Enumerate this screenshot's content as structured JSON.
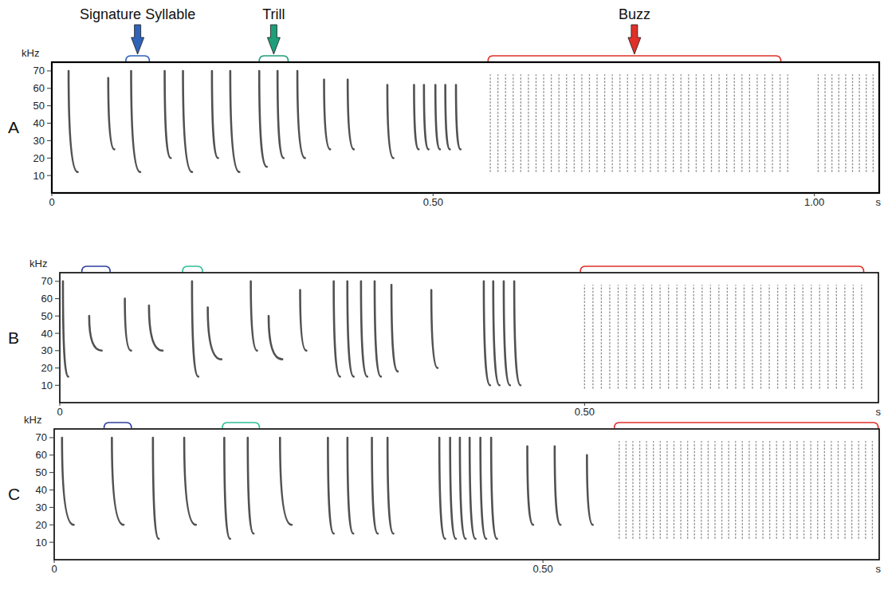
{
  "chart_data": [
    {
      "type": "spectrogram",
      "title": "A",
      "ylabel": "kHz",
      "xlabel": "s",
      "color": "#333333",
      "xlim": [
        0,
        1.085
      ],
      "xticks": [
        0,
        {
          "value": 0.5,
          "label": "0.50"
        },
        {
          "value": 1.0,
          "label": "1.00"
        }
      ],
      "ylim": [
        0,
        75
      ],
      "yticks": [
        10,
        20,
        30,
        40,
        50,
        60,
        70
      ],
      "annotations": [
        {
          "label": "Signature Syllable",
          "x": [
            0.097,
            0.128
          ],
          "color": "#2f63b8"
        },
        {
          "label": "Trill",
          "x": [
            0.272,
            0.31
          ],
          "color": "#1f9e7a"
        },
        {
          "label": "Buzz",
          "x": [
            0.572,
            0.956
          ],
          "color": "#e0302a"
        }
      ],
      "syllables": [
        {
          "t": [
            0.022,
            0.034
          ],
          "f": [
            70,
            12
          ]
        },
        {
          "t": [
            0.074,
            0.082
          ],
          "f": [
            66,
            25
          ]
        },
        {
          "t": [
            0.104,
            0.116
          ],
          "f": [
            70,
            12
          ]
        },
        {
          "t": [
            0.148,
            0.156
          ],
          "f": [
            70,
            20
          ]
        },
        {
          "t": [
            0.172,
            0.184
          ],
          "f": [
            70,
            12
          ]
        },
        {
          "t": [
            0.21,
            0.218
          ],
          "f": [
            70,
            20
          ]
        },
        {
          "t": [
            0.234,
            0.246
          ],
          "f": [
            70,
            12
          ]
        },
        {
          "t": [
            0.272,
            0.282
          ],
          "f": [
            70,
            15
          ]
        },
        {
          "t": [
            0.296,
            0.304
          ],
          "f": [
            70,
            20
          ]
        },
        {
          "t": [
            0.322,
            0.332
          ],
          "f": [
            70,
            20
          ]
        },
        {
          "t": [
            0.357,
            0.365
          ],
          "f": [
            65,
            25
          ]
        },
        {
          "t": [
            0.388,
            0.396
          ],
          "f": [
            65,
            25
          ]
        },
        {
          "t": [
            0.44,
            0.448
          ],
          "f": [
            62,
            20
          ]
        },
        {
          "t": [
            0.475,
            0.481
          ],
          "f": [
            62,
            25
          ]
        },
        {
          "t": [
            0.488,
            0.494
          ],
          "f": [
            62,
            25
          ]
        },
        {
          "t": [
            0.503,
            0.509
          ],
          "f": [
            62,
            25
          ]
        },
        {
          "t": [
            0.516,
            0.522
          ],
          "f": [
            62,
            25
          ]
        },
        {
          "t": [
            0.53,
            0.536
          ],
          "f": [
            62,
            25
          ]
        }
      ],
      "buzz": {
        "f": [
          12,
          68
        ],
        "t": [
          0.575,
          0.585,
          0.595,
          0.605,
          0.615,
          0.625,
          0.635,
          0.645,
          0.655,
          0.665,
          0.675,
          0.685,
          0.695,
          0.705,
          0.715,
          0.725,
          0.735,
          0.745,
          0.755,
          0.765,
          0.775,
          0.785,
          0.795,
          0.805,
          0.815,
          0.825,
          0.835,
          0.845,
          0.855,
          0.865,
          0.875,
          0.885,
          0.895,
          0.905,
          0.915,
          0.925,
          0.935,
          0.945,
          0.955,
          0.965,
          1.005,
          1.014,
          1.023,
          1.032,
          1.041,
          1.05,
          1.059,
          1.068,
          1.077
        ]
      }
    },
    {
      "type": "spectrogram",
      "title": "B",
      "ylabel": "kHz",
      "xlabel": "s",
      "color": "#333333",
      "xlim": [
        0,
        0.78
      ],
      "xticks": [
        0,
        {
          "value": 0.5,
          "label": "0.50"
        }
      ],
      "ylim": [
        0,
        75
      ],
      "yticks": [
        10,
        20,
        30,
        40,
        50,
        60,
        70
      ],
      "annotations": [
        {
          "x": [
            0.021,
            0.048
          ],
          "color": "#2f3f9e"
        },
        {
          "x": [
            0.117,
            0.136
          ],
          "color": "#2fbf95"
        },
        {
          "x": [
            0.496,
            0.766
          ],
          "color": "#e0302a"
        }
      ],
      "syllables": [
        {
          "t": [
            0.003,
            0.008
          ],
          "f": [
            70,
            15
          ]
        },
        {
          "t": [
            0.028,
            0.04
          ],
          "f": [
            50,
            30
          ]
        },
        {
          "t": [
            0.062,
            0.068
          ],
          "f": [
            60,
            30
          ]
        },
        {
          "t": [
            0.085,
            0.098
          ],
          "f": [
            56,
            30
          ]
        },
        {
          "t": [
            0.126,
            0.132
          ],
          "f": [
            70,
            15
          ]
        },
        {
          "t": [
            0.141,
            0.154
          ],
          "f": [
            55,
            25
          ]
        },
        {
          "t": [
            0.182,
            0.188
          ],
          "f": [
            70,
            30
          ]
        },
        {
          "t": [
            0.199,
            0.212
          ],
          "f": [
            50,
            25
          ]
        },
        {
          "t": [
            0.229,
            0.235
          ],
          "f": [
            65,
            30
          ]
        },
        {
          "t": [
            0.261,
            0.267
          ],
          "f": [
            70,
            15
          ]
        },
        {
          "t": [
            0.274,
            0.28
          ],
          "f": [
            70,
            15
          ]
        },
        {
          "t": [
            0.287,
            0.293
          ],
          "f": [
            70,
            15
          ]
        },
        {
          "t": [
            0.3,
            0.306
          ],
          "f": [
            70,
            15
          ]
        },
        {
          "t": [
            0.316,
            0.322
          ],
          "f": [
            68,
            18
          ]
        },
        {
          "t": [
            0.354,
            0.36
          ],
          "f": [
            65,
            20
          ]
        },
        {
          "t": [
            0.404,
            0.41
          ],
          "f": [
            70,
            10
          ]
        },
        {
          "t": [
            0.413,
            0.419
          ],
          "f": [
            70,
            10
          ]
        },
        {
          "t": [
            0.423,
            0.429
          ],
          "f": [
            70,
            10
          ]
        },
        {
          "t": [
            0.433,
            0.439
          ],
          "f": [
            70,
            10
          ]
        }
      ],
      "buzz": {
        "f": [
          8,
          68
        ],
        "t": [
          0.5,
          0.508,
          0.516,
          0.524,
          0.532,
          0.54,
          0.548,
          0.556,
          0.564,
          0.572,
          0.58,
          0.588,
          0.596,
          0.604,
          0.612,
          0.62,
          0.628,
          0.636,
          0.644,
          0.652,
          0.66,
          0.668,
          0.676,
          0.684,
          0.692,
          0.7,
          0.708,
          0.716,
          0.724,
          0.732,
          0.74,
          0.748,
          0.756,
          0.764
        ]
      }
    },
    {
      "type": "spectrogram",
      "title": "C",
      "ylabel": "kHz",
      "xlabel": "s",
      "color": "#333333",
      "xlim": [
        0,
        0.844
      ],
      "xticks": [
        0,
        {
          "value": 0.5,
          "label": "0.50"
        }
      ],
      "ylim": [
        0,
        75
      ],
      "yticks": [
        10,
        20,
        30,
        40,
        50,
        60,
        70
      ],
      "annotations": [
        {
          "x": [
            0.051,
            0.079
          ],
          "color": "#2f3f9e"
        },
        {
          "x": [
            0.172,
            0.21
          ],
          "color": "#2fbf95"
        },
        {
          "x": [
            0.573,
            0.843
          ],
          "color": "#e0302a"
        }
      ],
      "syllables": [
        {
          "t": [
            0.008,
            0.02
          ],
          "f": [
            70,
            20
          ]
        },
        {
          "t": [
            0.059,
            0.071
          ],
          "f": [
            70,
            20
          ]
        },
        {
          "t": [
            0.101,
            0.107
          ],
          "f": [
            70,
            12
          ]
        },
        {
          "t": [
            0.133,
            0.145
          ],
          "f": [
            70,
            20
          ]
        },
        {
          "t": [
            0.174,
            0.18
          ],
          "f": [
            70,
            12
          ]
        },
        {
          "t": [
            0.198,
            0.204
          ],
          "f": [
            70,
            15
          ]
        },
        {
          "t": [
            0.231,
            0.243
          ],
          "f": [
            70,
            20
          ]
        },
        {
          "t": [
            0.28,
            0.286
          ],
          "f": [
            70,
            15
          ]
        },
        {
          "t": [
            0.3,
            0.306
          ],
          "f": [
            70,
            15
          ]
        },
        {
          "t": [
            0.325,
            0.331
          ],
          "f": [
            70,
            15
          ]
        },
        {
          "t": [
            0.341,
            0.347
          ],
          "f": [
            70,
            15
          ]
        },
        {
          "t": [
            0.394,
            0.4
          ],
          "f": [
            70,
            12
          ]
        },
        {
          "t": [
            0.405,
            0.411
          ],
          "f": [
            70,
            12
          ]
        },
        {
          "t": [
            0.415,
            0.421
          ],
          "f": [
            70,
            12
          ]
        },
        {
          "t": [
            0.425,
            0.431
          ],
          "f": [
            70,
            12
          ]
        },
        {
          "t": [
            0.436,
            0.442
          ],
          "f": [
            70,
            12
          ]
        },
        {
          "t": [
            0.447,
            0.453
          ],
          "f": [
            70,
            12
          ]
        },
        {
          "t": [
            0.484,
            0.49
          ],
          "f": [
            65,
            20
          ]
        },
        {
          "t": [
            0.512,
            0.518
          ],
          "f": [
            65,
            20
          ]
        },
        {
          "t": [
            0.545,
            0.551
          ],
          "f": [
            60,
            20
          ]
        }
      ],
      "buzz": {
        "f": [
          12,
          68
        ],
        "t": [
          0.578,
          0.585,
          0.592,
          0.599,
          0.606,
          0.613,
          0.62,
          0.627,
          0.634,
          0.641,
          0.648,
          0.655,
          0.662,
          0.669,
          0.676,
          0.683,
          0.69,
          0.697,
          0.704,
          0.711,
          0.718,
          0.725,
          0.732,
          0.739,
          0.746,
          0.753,
          0.76,
          0.767,
          0.774,
          0.781,
          0.788,
          0.795,
          0.802,
          0.809,
          0.816,
          0.823,
          0.83,
          0.837
        ]
      }
    }
  ]
}
